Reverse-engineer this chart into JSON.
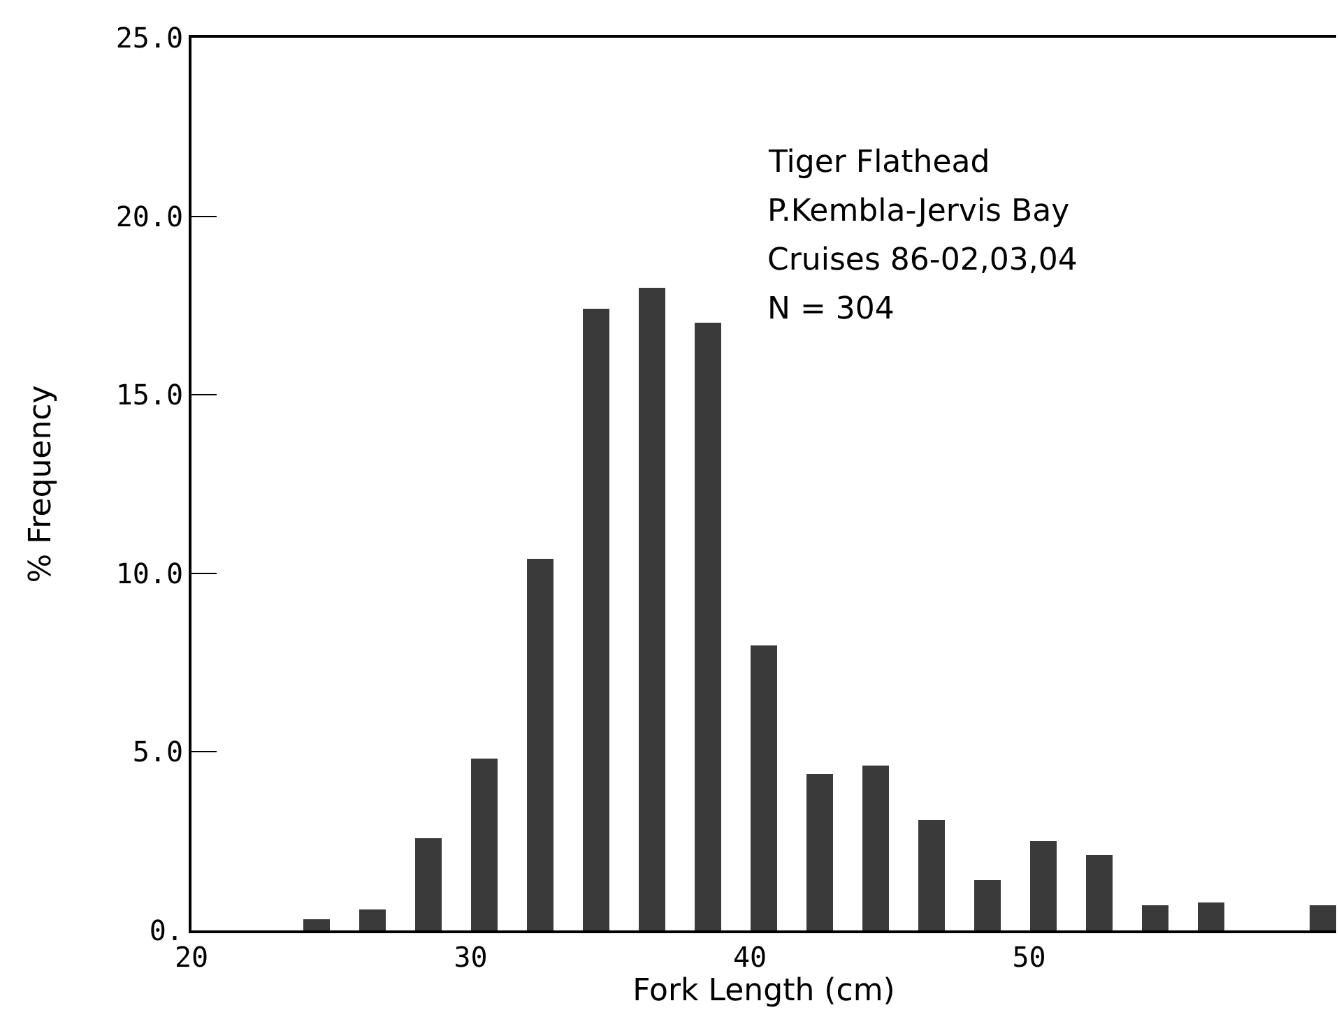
{
  "chart_data": {
    "type": "bar",
    "xlabel": "Fork Length (cm)",
    "ylabel": "% Frequency",
    "x": [
      24.5,
      26.5,
      28.5,
      30.5,
      32.5,
      34.5,
      36.5,
      38.5,
      40.5,
      42.5,
      44.5,
      46.5,
      48.5,
      50.5,
      52.5,
      54.5,
      56.5,
      60.5
    ],
    "values": [
      0.3,
      0.6,
      2.6,
      4.8,
      10.4,
      17.4,
      18.0,
      17.0,
      8.0,
      4.4,
      4.6,
      3.1,
      1.4,
      2.5,
      2.1,
      0.7,
      0.8,
      0.7
    ],
    "color": "#3a3a3a",
    "xlim": [
      20,
      61
    ],
    "xticks": [
      20,
      30,
      40,
      50
    ],
    "ylim": [
      0,
      25
    ],
    "yticks": [
      {
        "value": 0,
        "label": "0."
      },
      {
        "value": 5,
        "label": "5.0"
      },
      {
        "value": 10,
        "label": "10.0"
      },
      {
        "value": 15,
        "label": "15.0"
      },
      {
        "value": 20,
        "label": "20.0"
      },
      {
        "value": 25,
        "label": "25.0"
      }
    ],
    "annotations": [
      "Tiger Flathead",
      "P.Kembla-Jervis Bay",
      "Cruises 86-02,03,04",
      "N = 304"
    ]
  }
}
